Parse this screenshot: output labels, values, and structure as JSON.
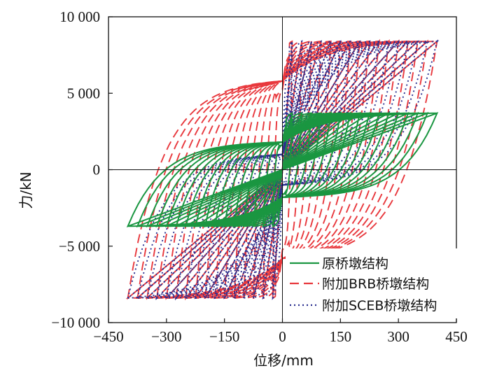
{
  "chart_data": {
    "type": "line",
    "title": "",
    "xlabel": "位移/mm",
    "ylabel": "力/kN",
    "xlim": [
      -450,
      450
    ],
    "ylim": [
      -10000,
      10000
    ],
    "x_ticks": [
      -450,
      -300,
      -150,
      0,
      150,
      300,
      450
    ],
    "x_tick_labels": [
      "−450",
      "−300",
      "−150",
      "0",
      "150",
      "300",
      "450"
    ],
    "y_ticks": [
      -10000,
      -5000,
      0,
      5000,
      10000
    ],
    "y_tick_labels": [
      "−10 000",
      "−5 000",
      "0",
      "5 000",
      "10 000"
    ],
    "grid": false,
    "legend_position": "bottom-right",
    "series": [
      {
        "name": "原桥墩结构",
        "color": "#1a9641",
        "dash": "solid",
        "loop_amplitudes_mm": [
          25,
          50,
          75,
          100,
          125,
          150,
          175,
          200,
          225,
          250,
          275,
          300,
          325,
          350,
          375,
          400
        ],
        "peak_force_kN": 3700,
        "force_at_zero_disp_kN": 1800,
        "elastic_force_kN": 1500,
        "elastic_disp_mm": 10
      },
      {
        "name": "附加BRB桥墩结构",
        "color": "#e8383d",
        "dash": "dashed",
        "loop_amplitudes_mm": [
          25,
          50,
          75,
          100,
          125,
          150,
          175,
          200,
          225,
          250,
          275,
          300,
          325,
          350,
          375,
          400
        ],
        "peak_force_kN": 8400,
        "force_at_zero_disp_kN": 5800,
        "elastic_force_kN": 6000,
        "elastic_disp_mm": 18
      },
      {
        "name": "附加SCEB桥墩结构",
        "color": "#2a2f8f",
        "dash": "dotted",
        "loop_amplitudes_mm": [
          25,
          50,
          75,
          100,
          125,
          150,
          175,
          200,
          225,
          250,
          275,
          300,
          325,
          350,
          375,
          400
        ],
        "peak_force_kN": 8400,
        "force_at_zero_disp_kN": 1000,
        "elastic_force_kN": 6000,
        "elastic_disp_mm": 18
      }
    ]
  }
}
